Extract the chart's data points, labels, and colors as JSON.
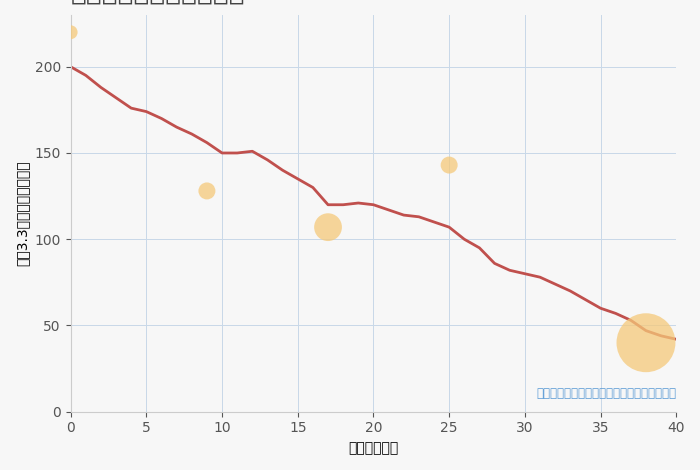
{
  "xlabel": "築年数（年）",
  "ylabel": "坪（3.3㎡）単価（万円）",
  "annotation": "円の大きさは、取引のあった物件面積を示す",
  "background_color": "#f7f7f7",
  "plot_bg_color": "#f7f7f7",
  "line_color": "#c0504d",
  "line_width": 2.0,
  "grid_color": "#c8d8e8",
  "xlim": [
    0,
    40
  ],
  "ylim": [
    0,
    230
  ],
  "xticks": [
    0,
    5,
    10,
    15,
    20,
    25,
    30,
    35,
    40
  ],
  "yticks": [
    0,
    50,
    100,
    150,
    200
  ],
  "line_x": [
    0,
    1,
    2,
    3,
    4,
    5,
    6,
    7,
    8,
    9,
    10,
    11,
    12,
    13,
    14,
    15,
    16,
    17,
    18,
    19,
    20,
    21,
    22,
    23,
    24,
    25,
    26,
    27,
    28,
    29,
    30,
    31,
    32,
    33,
    34,
    35,
    36,
    37,
    38,
    39,
    40
  ],
  "line_y": [
    200,
    195,
    188,
    182,
    176,
    174,
    170,
    165,
    161,
    156,
    150,
    150,
    151,
    146,
    140,
    135,
    130,
    120,
    120,
    121,
    120,
    117,
    114,
    113,
    110,
    107,
    100,
    95,
    86,
    82,
    80,
    78,
    74,
    70,
    65,
    60,
    57,
    53,
    47,
    44,
    42
  ],
  "scatter_x": [
    0,
    9,
    17,
    25,
    38
  ],
  "scatter_y": [
    220,
    128,
    107,
    143,
    40
  ],
  "scatter_sizes": [
    100,
    150,
    400,
    150,
    1800
  ],
  "scatter_color": "#f5c97a",
  "scatter_alpha": 0.75,
  "title_fontsize": 19,
  "axis_label_fontsize": 10,
  "tick_fontsize": 10,
  "annotation_fontsize": 8.5,
  "annotation_color": "#5b9bd5",
  "title_color": "#444444"
}
